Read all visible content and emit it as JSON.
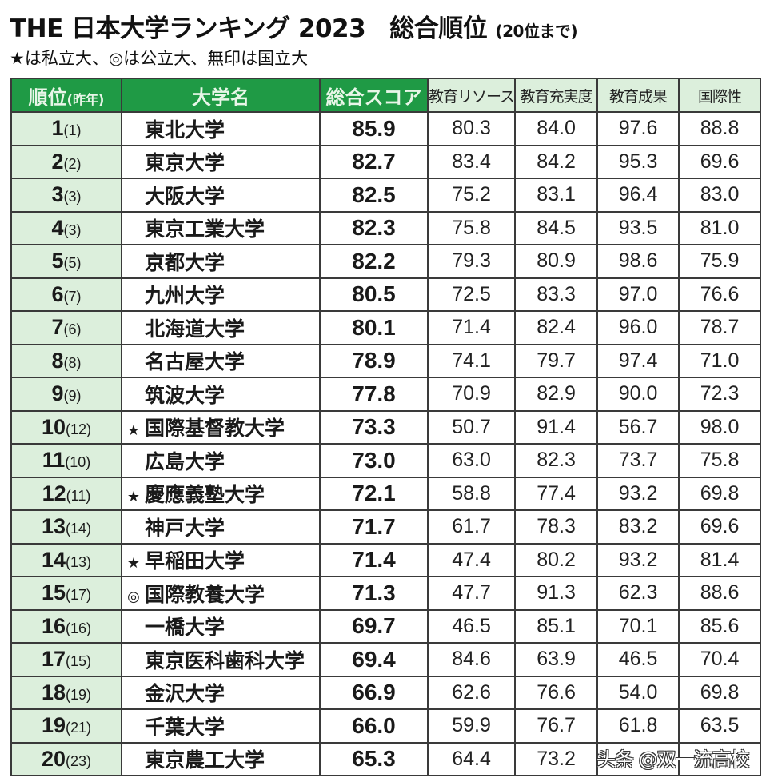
{
  "header": {
    "title_main": "THE 日本大学ランキング 2023",
    "title_sub": "総合順位",
    "title_note": "(20位まで)",
    "legend": "★は私立大、◎は公立大、無印は国立大"
  },
  "table": {
    "columns": [
      {
        "label": "順位",
        "sub": "(昨年)"
      },
      {
        "label": "大学名"
      },
      {
        "label": "総合スコア"
      },
      {
        "label": "教育リソース"
      },
      {
        "label": "教育充実度"
      },
      {
        "label": "教育成果"
      },
      {
        "label": "国際性"
      }
    ],
    "rows": [
      {
        "rank": "1",
        "prev": "(1)",
        "mark": "",
        "name": "東北大学",
        "score": "85.9",
        "resources": "80.3",
        "engagement": "84.0",
        "outcomes": "97.6",
        "international": "88.8"
      },
      {
        "rank": "2",
        "prev": "(2)",
        "mark": "",
        "name": "東京大学",
        "score": "82.7",
        "resources": "83.4",
        "engagement": "84.2",
        "outcomes": "95.3",
        "international": "69.6"
      },
      {
        "rank": "3",
        "prev": "(3)",
        "mark": "",
        "name": "大阪大学",
        "score": "82.5",
        "resources": "75.2",
        "engagement": "83.1",
        "outcomes": "96.4",
        "international": "83.0"
      },
      {
        "rank": "4",
        "prev": "(3)",
        "mark": "",
        "name": "東京工業大学",
        "score": "82.3",
        "resources": "75.8",
        "engagement": "84.5",
        "outcomes": "93.5",
        "international": "81.0"
      },
      {
        "rank": "5",
        "prev": "(5)",
        "mark": "",
        "name": "京都大学",
        "score": "82.2",
        "resources": "79.3",
        "engagement": "80.9",
        "outcomes": "98.6",
        "international": "75.9"
      },
      {
        "rank": "6",
        "prev": "(7)",
        "mark": "",
        "name": "九州大学",
        "score": "80.5",
        "resources": "72.5",
        "engagement": "83.3",
        "outcomes": "97.0",
        "international": "76.6"
      },
      {
        "rank": "7",
        "prev": "(6)",
        "mark": "",
        "name": "北海道大学",
        "score": "80.1",
        "resources": "71.4",
        "engagement": "82.4",
        "outcomes": "96.0",
        "international": "78.7"
      },
      {
        "rank": "8",
        "prev": "(8)",
        "mark": "",
        "name": "名古屋大学",
        "score": "78.9",
        "resources": "74.1",
        "engagement": "79.7",
        "outcomes": "97.4",
        "international": "71.0"
      },
      {
        "rank": "9",
        "prev": "(9)",
        "mark": "",
        "name": "筑波大学",
        "score": "77.8",
        "resources": "70.9",
        "engagement": "82.9",
        "outcomes": "90.0",
        "international": "72.3"
      },
      {
        "rank": "10",
        "prev": "(12)",
        "mark": "★",
        "name": "国際基督教大学",
        "score": "73.3",
        "resources": "50.7",
        "engagement": "91.4",
        "outcomes": "56.7",
        "international": "98.0"
      },
      {
        "rank": "11",
        "prev": "(10)",
        "mark": "",
        "name": "広島大学",
        "score": "73.0",
        "resources": "63.0",
        "engagement": "82.3",
        "outcomes": "73.7",
        "international": "75.8"
      },
      {
        "rank": "12",
        "prev": "(11)",
        "mark": "★",
        "name": "慶應義塾大学",
        "score": "72.1",
        "resources": "58.8",
        "engagement": "77.4",
        "outcomes": "93.2",
        "international": "69.8"
      },
      {
        "rank": "13",
        "prev": "(14)",
        "mark": "",
        "name": "神戸大学",
        "score": "71.7",
        "resources": "61.7",
        "engagement": "78.3",
        "outcomes": "83.2",
        "international": "69.6"
      },
      {
        "rank": "14",
        "prev": "(13)",
        "mark": "★",
        "name": "早稲田大学",
        "score": "71.4",
        "resources": "47.4",
        "engagement": "80.2",
        "outcomes": "93.2",
        "international": "81.4"
      },
      {
        "rank": "15",
        "prev": "(17)",
        "mark": "◎",
        "name": "国際教養大学",
        "score": "71.3",
        "resources": "47.7",
        "engagement": "91.3",
        "outcomes": "62.3",
        "international": "88.6"
      },
      {
        "rank": "16",
        "prev": "(16)",
        "mark": "",
        "name": "一橋大学",
        "score": "69.7",
        "resources": "46.5",
        "engagement": "85.1",
        "outcomes": "70.1",
        "international": "85.6"
      },
      {
        "rank": "17",
        "prev": "(15)",
        "mark": "",
        "name": "東京医科歯科大学",
        "score": "69.4",
        "resources": "84.6",
        "engagement": "63.9",
        "outcomes": "46.5",
        "international": "70.4"
      },
      {
        "rank": "18",
        "prev": "(19)",
        "mark": "",
        "name": "金沢大学",
        "score": "66.9",
        "resources": "62.6",
        "engagement": "76.6",
        "outcomes": "54.0",
        "international": "69.8"
      },
      {
        "rank": "19",
        "prev": "(21)",
        "mark": "",
        "name": "千葉大学",
        "score": "66.0",
        "resources": "59.9",
        "engagement": "76.7",
        "outcomes": "61.8",
        "international": "63.5"
      },
      {
        "rank": "20",
        "prev": "(23)",
        "mark": "",
        "name": "東京農工大学",
        "score": "65.3",
        "resources": "64.4",
        "engagement": "73.2",
        "outcomes": "",
        "international": ""
      }
    ]
  },
  "watermark": "头条 @双一流高校",
  "colors": {
    "header_green": "#1f9a45",
    "light_green": "#dcefdc",
    "border": "#3a3a3a"
  }
}
